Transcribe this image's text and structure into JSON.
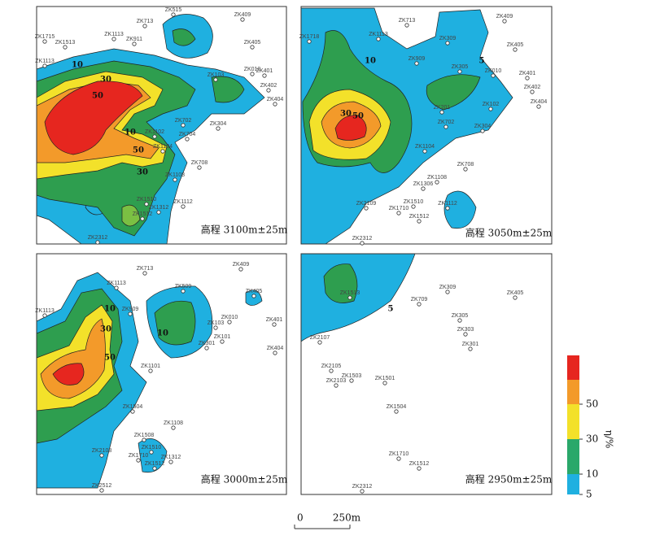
{
  "panels": [
    {
      "label": "高程 3100m±25m",
      "wells": [
        "ZK515",
        "ZK713",
        "ZK409",
        "ZK1715",
        "ZK1513",
        "ZK1113",
        "ZK911",
        "ZK405",
        "ZK401",
        "ZK402",
        "ZK404",
        "ZK010",
        "ZK103",
        "ZK304",
        "ZK704",
        "ZK702",
        "ZK1102",
        "ZK1104",
        "ZK708",
        "ZK1108",
        "ZK1510",
        "ZK1112",
        "ZK1312",
        "ZK1512",
        "ZK2312",
        "ZK1113"
      ],
      "contour_labels": [
        "10",
        "30",
        "50",
        "50",
        "30",
        "10"
      ]
    },
    {
      "label": "高程 3050m±25m",
      "wells": [
        "ZK713",
        "ZK409",
        "ZK1718",
        "ZK1113",
        "ZK309",
        "ZK405",
        "ZK909",
        "ZK305",
        "ZK010",
        "ZK401",
        "ZK402",
        "ZK404",
        "ZK102",
        "ZK201",
        "ZK702",
        "ZK304",
        "ZK1104",
        "ZK708",
        "ZK1108",
        "ZK1306",
        "ZK2109",
        "ZK1510",
        "ZK1710",
        "ZK1112",
        "ZK1512",
        "ZK2312"
      ],
      "contour_labels": [
        "10",
        "30",
        "50",
        "5"
      ]
    },
    {
      "label": "高程 3000m±25m",
      "wells": [
        "ZK713",
        "ZK409",
        "ZK1113",
        "ZK509",
        "ZK405",
        "ZK1113",
        "ZK909",
        "ZK010",
        "ZK401",
        "ZK103",
        "ZK101",
        "ZK301",
        "ZK404",
        "ZK1101",
        "ZK1504",
        "ZK1108",
        "ZK1508",
        "ZK1510",
        "ZK1710",
        "ZK1312",
        "ZK1512",
        "ZK2108",
        "ZK2512"
      ],
      "contour_labels": [
        "10",
        "30",
        "50",
        "10"
      ]
    },
    {
      "label": "高程 2950m±25m",
      "wells": [
        "ZK1513",
        "ZK709",
        "ZK309",
        "ZK405",
        "ZK305",
        "ZK303",
        "ZK301",
        "ZK2107",
        "ZK2105",
        "ZK1503",
        "ZK2103",
        "ZK1501",
        "ZK1504",
        "ZK1710",
        "ZK1512",
        "ZK2312"
      ],
      "contour_labels": [
        "5"
      ]
    }
  ],
  "legend": {
    "title": "η/%",
    "values": [
      5,
      10,
      30,
      50
    ]
  },
  "scale_bar": {
    "start": "0",
    "end": "250m"
  }
}
